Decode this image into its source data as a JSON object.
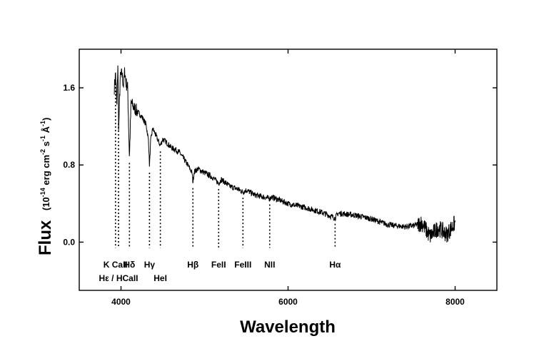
{
  "chart_data": {
    "type": "line",
    "title": "",
    "xlabel": "Wavelength",
    "ylabel": "Flux",
    "ylabel_unit": {
      "open": "(10",
      "exp1": "-14",
      "mid1": " erg cm",
      "exp2": "-2",
      "mid2": " s",
      "exp3": "-1",
      "mid3": " Å",
      "exp4": "-1",
      "close": ")"
    },
    "xlim": [
      3500,
      8500
    ],
    "ylim": [
      -0.5,
      2.0
    ],
    "x_ticks": [
      4000,
      6000,
      8000
    ],
    "x_tick_labels": [
      "4000",
      "6000",
      "8000"
    ],
    "y_ticks": [
      0.0,
      0.8,
      1.6
    ],
    "y_tick_labels": [
      "0.0",
      "0.8",
      "1.6"
    ],
    "grid": false,
    "series": [
      {
        "values_x": [
          3920,
          3935,
          3950,
          3962,
          3972,
          3990,
          4010,
          4030,
          4045,
          4060,
          4080,
          4101,
          4120,
          4150,
          4200,
          4250,
          4300,
          4330,
          4341,
          4355,
          4380,
          4420,
          4471,
          4500,
          4550,
          4600,
          4650,
          4700,
          4800,
          4850,
          4861,
          4875,
          4920,
          5000,
          5100,
          5169,
          5200,
          5300,
          5400,
          5460,
          5500,
          5600,
          5700,
          5780,
          5800,
          6000,
          6200,
          6400,
          6563,
          6600,
          6800,
          7000,
          7200,
          7400,
          7500,
          7600,
          7700,
          7800,
          7900,
          8000
        ],
        "values_y": [
          1.6,
          1.75,
          1.4,
          1.85,
          1.15,
          1.7,
          1.75,
          1.62,
          1.78,
          1.65,
          1.6,
          0.88,
          1.45,
          1.4,
          1.35,
          1.3,
          1.22,
          1.05,
          0.78,
          1.05,
          1.18,
          1.1,
          1.0,
          1.07,
          1.03,
          0.98,
          0.96,
          0.93,
          0.8,
          0.72,
          0.62,
          0.73,
          0.76,
          0.72,
          0.67,
          0.61,
          0.65,
          0.58,
          0.55,
          0.52,
          0.54,
          0.49,
          0.47,
          0.45,
          0.47,
          0.4,
          0.36,
          0.31,
          0.25,
          0.3,
          0.28,
          0.24,
          0.18,
          0.16,
          0.17,
          0.2,
          0.06,
          0.15,
          0.08,
          0.2
        ]
      }
    ],
    "line_ids": [
      {
        "label": "K CaII",
        "x": 3934,
        "row": 1
      },
      {
        "label": "Hε / HCaII",
        "x": 3970,
        "row": 2
      },
      {
        "label": "Hδ",
        "x": 4101,
        "row": 1
      },
      {
        "label": "Hγ",
        "x": 4341,
        "row": 1
      },
      {
        "label": "HeI",
        "x": 4471,
        "row": 2
      },
      {
        "label": "Hβ",
        "x": 4861,
        "row": 1
      },
      {
        "label": "FeII",
        "x": 5169,
        "row": 1
      },
      {
        "label": "FeIII",
        "x": 5460,
        "row": 1
      },
      {
        "label": "NII",
        "x": 5780,
        "row": 1
      },
      {
        "label": "Hα",
        "x": 6563,
        "row": 1
      }
    ]
  }
}
